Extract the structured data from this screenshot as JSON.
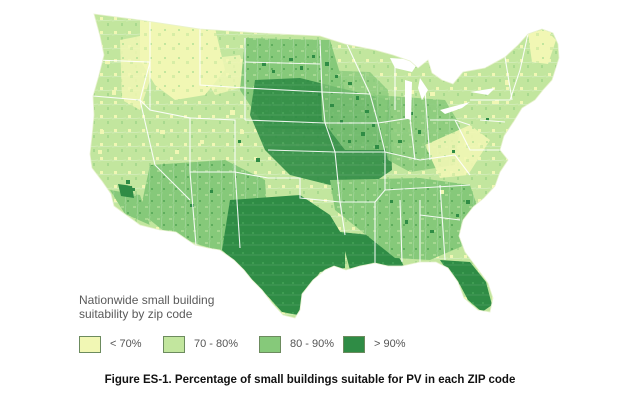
{
  "map": {
    "type": "choropleth",
    "region": "United States (contiguous)",
    "unit": "ZIP code",
    "colors": {
      "lt70": "#f1f7b4",
      "70-80": "#c2e69e",
      "80-90": "#86c97a",
      "gt90": "#2f8c45",
      "boundary": "#ffffff"
    },
    "regional_dominant_class": [
      {
        "region": "Pacific Northwest",
        "class": "70-80"
      },
      {
        "region": "California",
        "class": "70-80"
      },
      {
        "region": "Northern Rockies",
        "class": "lt70"
      },
      {
        "region": "Great Basin",
        "class": "70-80"
      },
      {
        "region": "Southwest",
        "class": "80-90"
      },
      {
        "region": "Northern Plains",
        "class": "80-90"
      },
      {
        "region": "Central Plains",
        "class": "gt90"
      },
      {
        "region": "Texas",
        "class": "gt90"
      },
      {
        "region": "Louisiana",
        "class": "gt90"
      },
      {
        "region": "Florida",
        "class": "gt90"
      },
      {
        "region": "Southeast",
        "class": "80-90"
      },
      {
        "region": "Midwest",
        "class": "80-90"
      },
      {
        "region": "Northeast",
        "class": "70-80"
      },
      {
        "region": "Appalachia",
        "class": "lt70"
      }
    ]
  },
  "legend": {
    "title_line1": "Nationwide small building",
    "title_line2": "suitability by zip code",
    "items": [
      {
        "label": "< 70%",
        "color": "#f1f7b4"
      },
      {
        "label": "70 - 80%",
        "color": "#c2e69e"
      },
      {
        "label": "80 - 90%",
        "color": "#86c97a"
      },
      {
        "label": "> 90%",
        "color": "#2f8c45"
      }
    ]
  },
  "caption": "Figure ES-1. Percentage of small buildings suitable for PV in each ZIP code"
}
